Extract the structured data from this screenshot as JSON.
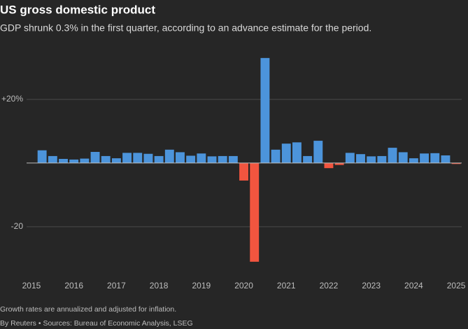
{
  "chart_data": {
    "type": "bar",
    "title": "US gross domestic product",
    "subtitle": "GDP shrunk 0.3% in the first quarter, according to an advance estimate for the period.",
    "notes": [
      "Growth rates are annualized and adjusted for inflation.",
      "By Reuters • Sources: Bureau of Economic Analysis, LSEG"
    ],
    "x": [
      2015.25,
      2015.5,
      2015.75,
      2016,
      2016.25,
      2016.5,
      2016.75,
      2017,
      2017.25,
      2017.5,
      2017.75,
      2018,
      2018.25,
      2018.5,
      2018.75,
      2019,
      2019.25,
      2019.5,
      2019.75,
      2020,
      2020.25,
      2020.5,
      2020.75,
      2021,
      2021.25,
      2021.5,
      2021.75,
      2022,
      2022.25,
      2022.5,
      2022.75,
      2023,
      2023.25,
      2023.5,
      2023.75,
      2024,
      2024.25,
      2024.5,
      2024.75,
      2025
    ],
    "values": [
      4.0,
      2.2,
      1.3,
      1.1,
      1.4,
      3.5,
      2.2,
      1.5,
      3.2,
      3.2,
      2.9,
      2.2,
      4.2,
      3.4,
      2.3,
      3.0,
      2.1,
      2.2,
      2.2,
      -5.5,
      -31.0,
      33.0,
      4.2,
      6.1,
      6.5,
      2.2,
      7.0,
      -1.6,
      -0.6,
      3.2,
      2.8,
      2.1,
      2.2,
      4.8,
      3.4,
      1.5,
      3.0,
      3.1,
      2.4,
      -0.3
    ],
    "positive_color": "#4c94db",
    "negative_color": "#f2553f",
    "xlim": [
      2014.885,
      2025.13
    ],
    "xticks": [
      2015,
      2016,
      2017,
      2018,
      2019,
      2020,
      2021,
      2022,
      2023,
      2024,
      2025
    ],
    "ylim": [
      -33,
      35
    ],
    "yticks": [
      {
        "value": 20,
        "label": "+20%"
      },
      -20
    ],
    "grid": true
  }
}
